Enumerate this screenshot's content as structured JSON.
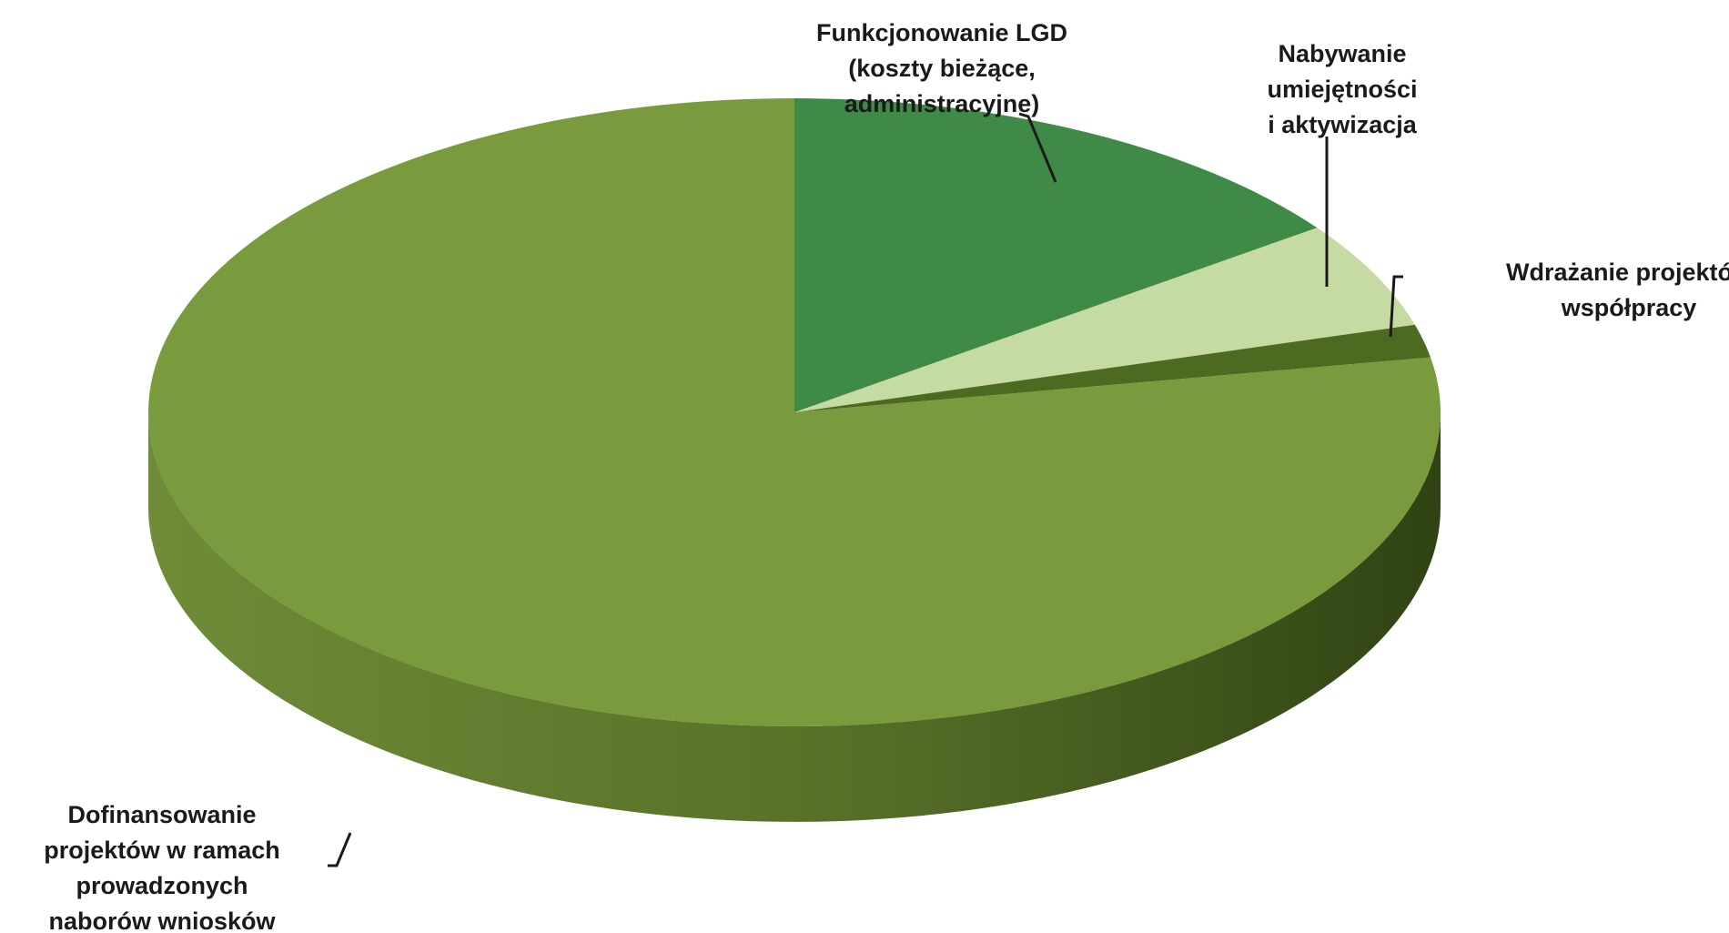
{
  "chart_data": {
    "type": "pie",
    "style": "3d",
    "title": "",
    "slices": [
      {
        "label_lines": [
          "Funkcjonowanie LGD",
          "(koszty bieżące,",
          "administracyjne)"
        ],
        "value": 15,
        "color": "#3f8a46"
      },
      {
        "label_lines": [
          "Nabywanie",
          "umiejętności",
          "i aktywizacja"
        ],
        "value": 5.5,
        "color": "#c6dba3"
      },
      {
        "label_lines": [
          "Wdrażanie projektów",
          "współpracy"
        ],
        "value": 1.7,
        "color": "#4c6b20"
      },
      {
        "label_lines": [
          "Dofinansowanie",
          "projektów w ramach",
          "prowadzonych",
          "naborów wniosków"
        ],
        "value": 77.8,
        "color": "#7a9a3e"
      }
    ],
    "legend": "none"
  }
}
